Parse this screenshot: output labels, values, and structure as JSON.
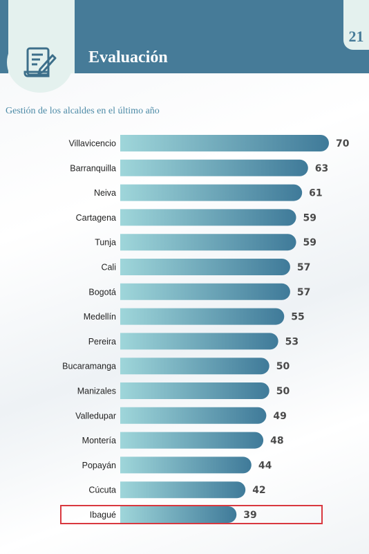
{
  "header": {
    "title": "Evaluación",
    "page_number": "21",
    "icon": "document-pen-icon"
  },
  "colors": {
    "header": "#467b98",
    "tab": "#e4f1ee",
    "bar_start": "#9fd6da",
    "bar_end": "#3f7a99",
    "highlight": "#d9383f"
  },
  "chart_data": {
    "type": "bar",
    "orientation": "horizontal",
    "title": "Gestión de los alcaldes en el último año",
    "xlabel": "",
    "ylabel": "",
    "xlim": [
      0,
      70
    ],
    "grid": false,
    "categories": [
      "Villavicencio",
      "Barranquilla",
      "Neiva",
      "Cartagena",
      "Tunja",
      "Cali",
      "Bogotá",
      "Medellín",
      "Pereira",
      "Bucaramanga",
      "Manizales",
      "Valledupar",
      "Montería",
      "Popayán",
      "Cúcuta",
      "Ibagué"
    ],
    "values": [
      70,
      63,
      61,
      59,
      59,
      57,
      57,
      55,
      53,
      50,
      50,
      49,
      48,
      44,
      42,
      39
    ],
    "value_labels": [
      "70",
      "63",
      "61",
      "59",
      "59",
      "57",
      "57",
      "55",
      "53",
      "50",
      "50",
      "49",
      "48",
      "44",
      "42",
      "39"
    ],
    "highlighted_category": "Ibagué"
  }
}
